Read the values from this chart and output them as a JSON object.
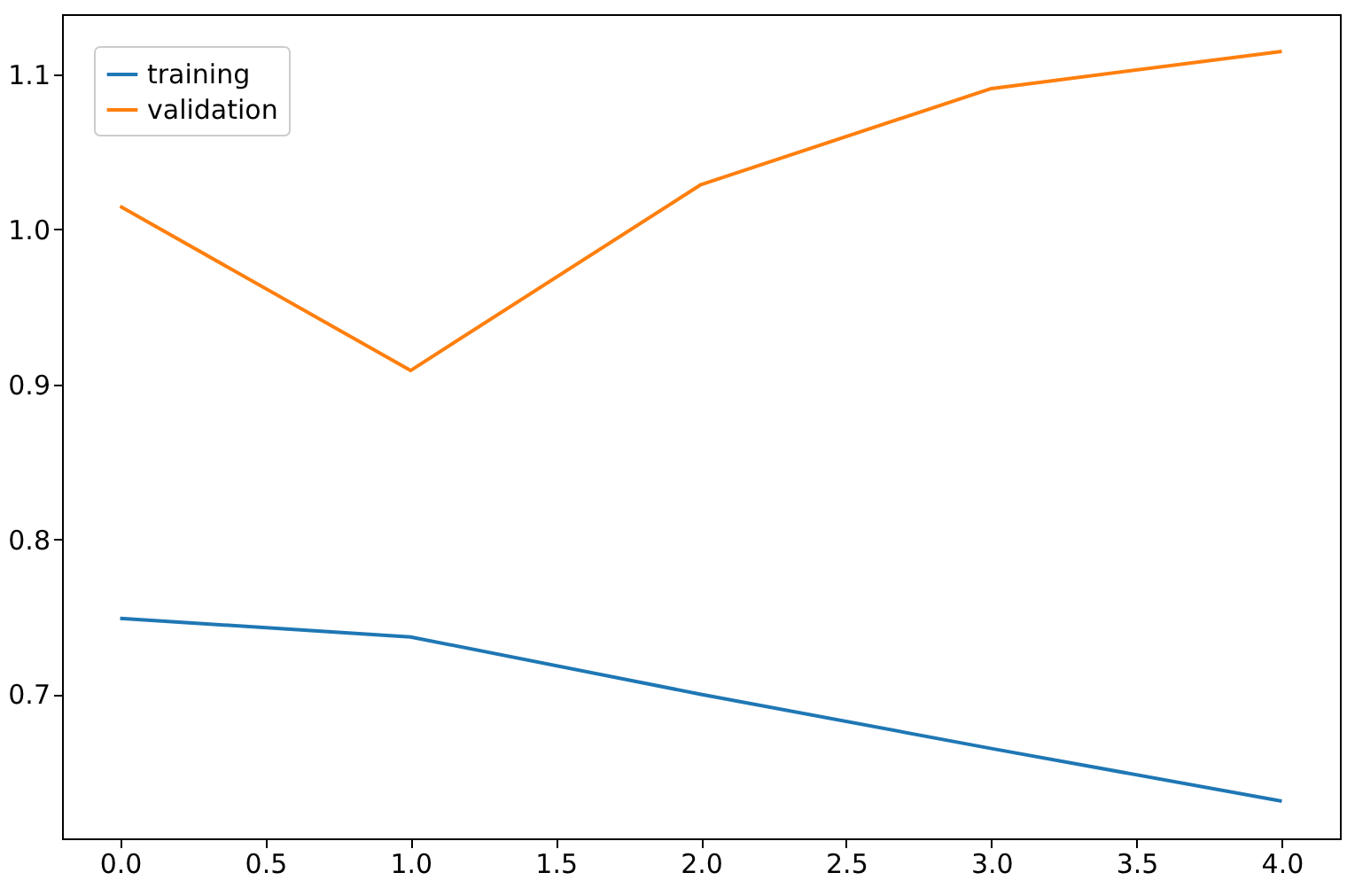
{
  "chart_data": {
    "type": "line",
    "x": [
      0,
      1,
      2,
      3,
      4
    ],
    "series": [
      {
        "name": "training",
        "color": "#1f77b4",
        "values": [
          0.749,
          0.737,
          0.7,
          0.665,
          0.631
        ]
      },
      {
        "name": "validation",
        "color": "#ff7f0e",
        "values": [
          1.015,
          0.909,
          1.029,
          1.091,
          1.115
        ]
      }
    ],
    "xlim": [
      -0.2,
      4.2
    ],
    "xticks": [
      {
        "value": 0,
        "label": "0.0"
      },
      {
        "value": 0.5,
        "label": "0.5"
      },
      {
        "value": 1,
        "label": "1.0"
      },
      {
        "value": 1.5,
        "label": "1.5"
      },
      {
        "value": 2,
        "label": "2.0"
      },
      {
        "value": 2.5,
        "label": "2.5"
      },
      {
        "value": 3,
        "label": "3.0"
      },
      {
        "value": 3.5,
        "label": "3.5"
      },
      {
        "value": 4,
        "label": "4.0"
      }
    ],
    "ylim": [
      0.607,
      1.139
    ],
    "yticks": [
      {
        "value": 0.7,
        "label": "0.7"
      },
      {
        "value": 0.8,
        "label": "0.8"
      },
      {
        "value": 0.9,
        "label": "0.9"
      },
      {
        "value": 1.0,
        "label": "1.0"
      },
      {
        "value": 1.1,
        "label": "1.1"
      }
    ],
    "legend": "top left",
    "grid": false,
    "line_style": "solid"
  }
}
